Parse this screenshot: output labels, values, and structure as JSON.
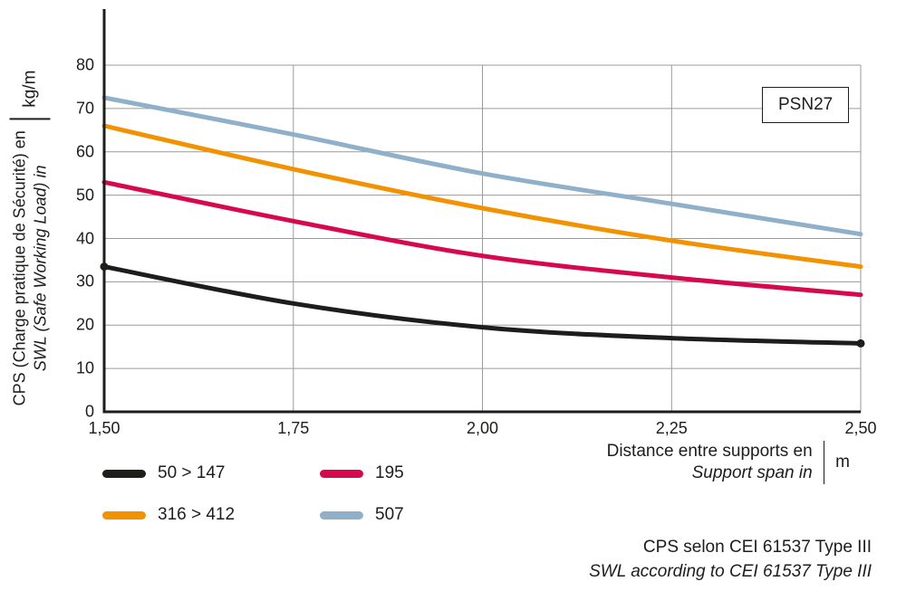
{
  "psn_label": "PSN27",
  "colors": {
    "black": "#1d1d1b",
    "red": "#d6094f",
    "orange": "#f39200",
    "blue": "#8fb0c8",
    "grid": "#9a9a9a",
    "axis": "#1d1d1b"
  },
  "y_axis": {
    "line1": "CPS (Charge pratique de Sécurité) en",
    "line2": "SWL (Safe Working Load) in",
    "unit": "kg/m",
    "ticks": [
      "80",
      "70",
      "60",
      "50",
      "40",
      "30",
      "20",
      "10",
      "0"
    ]
  },
  "x_axis": {
    "line1": "Distance entre supports en",
    "line2": "Support span in",
    "unit": "m",
    "ticks": [
      "1,50",
      "1,75",
      "2,00",
      "2,25",
      "2,50"
    ]
  },
  "legend": [
    {
      "label": "50 > 147",
      "color_key": "black"
    },
    {
      "label": "195",
      "color_key": "red"
    },
    {
      "label": "316 > 412",
      "color_key": "orange"
    },
    {
      "label": "507",
      "color_key": "blue"
    }
  ],
  "footer": {
    "line1": "CPS selon CEI 61537 Type III",
    "line2": "SWL according to CEI 61537 Type III"
  },
  "chart_data": {
    "type": "line",
    "title": "PSN27",
    "xlabel": "Distance entre supports en / Support span in (m)",
    "ylabel": "CPS (Charge pratique de Sécurité) en / SWL (Safe Working Load) in (kg/m)",
    "x": [
      1.5,
      1.75,
      2.0,
      2.25,
      2.5
    ],
    "xlim": [
      1.5,
      2.5
    ],
    "ylim": [
      0,
      80
    ],
    "x_tick_step": 0.25,
    "y_tick_step": 10,
    "grid": true,
    "legend_position": "bottom",
    "series": [
      {
        "name": "507",
        "color_key": "blue",
        "values": [
          72.5,
          64,
          55,
          48,
          41
        ],
        "end_markers": false
      },
      {
        "name": "316 > 412",
        "color_key": "orange",
        "values": [
          66,
          56,
          47,
          39.5,
          33.5
        ],
        "end_markers": false
      },
      {
        "name": "195",
        "color_key": "red",
        "values": [
          53,
          44,
          36,
          31,
          27
        ],
        "end_markers": false
      },
      {
        "name": "50 > 147",
        "color_key": "black",
        "values": [
          33.5,
          25,
          19.5,
          17,
          15.8
        ],
        "end_markers": true
      }
    ]
  }
}
